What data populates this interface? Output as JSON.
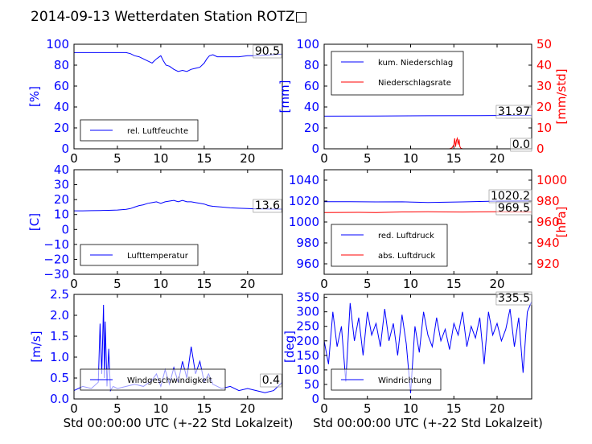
{
  "title": "2014-09-13 Wetterdaten Station ROTZ□",
  "colors": {
    "blue": "#0000ff",
    "red": "#ff0000",
    "axis": "#000000"
  },
  "chart_data": [
    {
      "id": "humidity",
      "type": "line",
      "ylabel": "[%]",
      "ylim": [
        0,
        100
      ],
      "yticks": [
        0,
        20,
        40,
        60,
        80,
        100
      ],
      "xlim": [
        0,
        24
      ],
      "xticks": [
        0,
        5,
        10,
        15,
        20
      ],
      "xlabel": "",
      "legend_position": "lower-left",
      "series": [
        {
          "name": "rel. Luftfeuchte",
          "color": "#0000ff",
          "x": [
            0,
            1,
            2,
            3,
            4,
            5,
            6,
            6.5,
            7,
            7.5,
            8,
            8.5,
            9,
            9.5,
            10,
            10.3,
            10.6,
            11,
            11.5,
            12,
            12.5,
            13,
            13.5,
            14,
            14.5,
            15,
            15.3,
            15.6,
            16,
            16.5,
            17,
            18,
            19,
            20,
            21,
            22,
            23,
            24
          ],
          "y": [
            92,
            92,
            92,
            92,
            92,
            92,
            92,
            91,
            89,
            88,
            86,
            84,
            82,
            86,
            89,
            84,
            80,
            79,
            76,
            74,
            75,
            74,
            76,
            77,
            78,
            82,
            86,
            89,
            90,
            88,
            88,
            88,
            88,
            89,
            89,
            89.5,
            90,
            90.5
          ]
        }
      ],
      "annotations": [
        {
          "text": "90.5"
        }
      ]
    },
    {
      "id": "rain",
      "type": "line",
      "ylabel": "[mm]",
      "ylim": [
        0,
        100
      ],
      "yticks": [
        0,
        20,
        40,
        60,
        80,
        100
      ],
      "y2label": "[mm/std]",
      "y2lim": [
        0,
        50
      ],
      "y2ticks": [
        0,
        10,
        20,
        30,
        40,
        50
      ],
      "xlim": [
        0,
        24
      ],
      "xticks": [
        0,
        5,
        10,
        15,
        20
      ],
      "xlabel": "",
      "legend_position": "upper-left",
      "series": [
        {
          "name": "kum. Niederschlag",
          "color": "#0000ff",
          "axis": "left",
          "x": [
            0,
            6,
            12,
            18,
            24
          ],
          "y": [
            31.2,
            31.4,
            31.6,
            31.8,
            31.97
          ]
        },
        {
          "name": "Niederschlagsrate",
          "color": "#ff0000",
          "axis": "right",
          "x": [
            0,
            14.5,
            14.8,
            15,
            15.1,
            15.2,
            15.3,
            15.4,
            15.5,
            15.6,
            15.7,
            15.8,
            16,
            24
          ],
          "y": [
            0,
            0,
            0.5,
            2,
            5,
            1,
            4,
            5,
            2,
            4.5,
            1,
            0.3,
            0,
            0
          ]
        }
      ],
      "annotations": [
        {
          "text": "31.97"
        },
        {
          "text": "0.0"
        }
      ]
    },
    {
      "id": "temperature",
      "type": "line",
      "ylabel": "[C]",
      "ylim": [
        -30,
        40
      ],
      "yticks": [
        -30,
        -20,
        -10,
        0,
        10,
        20,
        30,
        40
      ],
      "xlim": [
        0,
        24
      ],
      "xticks": [
        0,
        5,
        10,
        15,
        20
      ],
      "xlabel": "",
      "legend_position": "lower-left",
      "series": [
        {
          "name": "Lufttemperatur",
          "color": "#0000ff",
          "x": [
            0,
            1,
            2,
            3,
            4,
            5,
            6,
            6.5,
            7,
            7.5,
            8,
            8.5,
            9,
            9.5,
            10,
            10.5,
            11,
            11.5,
            12,
            12.5,
            13,
            13.5,
            14,
            14.5,
            15,
            15.5,
            16,
            17,
            18,
            19,
            20,
            21,
            22,
            23,
            24
          ],
          "y": [
            12.5,
            12.5,
            12.6,
            12.7,
            12.8,
            13,
            13.5,
            14,
            15,
            16,
            16.5,
            17.5,
            18,
            18.5,
            17.5,
            18.5,
            19,
            19.5,
            18.5,
            19.5,
            18.5,
            18.5,
            18,
            17.5,
            17,
            16,
            15.5,
            15,
            14.5,
            14.2,
            14,
            13.8,
            13.7,
            13.6,
            13.6
          ]
        }
      ],
      "annotations": [
        {
          "text": "13.6"
        }
      ]
    },
    {
      "id": "pressure",
      "type": "line",
      "ylim": [
        950,
        1050
      ],
      "yticks": [
        960,
        980,
        1000,
        1020,
        1040
      ],
      "y2label": "[hPa]",
      "y2lim": [
        910,
        1010
      ],
      "y2ticks": [
        920,
        940,
        960,
        980,
        1000
      ],
      "xlim": [
        0,
        24
      ],
      "xticks": [
        0,
        5,
        10,
        15,
        20
      ],
      "xlabel": "",
      "legend_position": "lower-left",
      "series": [
        {
          "name": "red. Luftdruck",
          "color": "#0000ff",
          "axis": "left",
          "x": [
            0,
            3,
            6,
            9,
            12,
            14,
            16,
            18,
            20,
            22,
            24
          ],
          "y": [
            1019.5,
            1019.5,
            1019.2,
            1019.3,
            1018.6,
            1018.9,
            1019.2,
            1019.6,
            1020,
            1020.1,
            1020.2
          ]
        },
        {
          "name": "abs. Luftdruck",
          "color": "#ff0000",
          "axis": "right",
          "x": [
            0,
            4,
            6,
            9,
            12,
            14,
            16,
            18,
            20,
            22,
            24
          ],
          "y": [
            969,
            969.2,
            969.1,
            969.6,
            969.8,
            969.6,
            969.5,
            969.7,
            969.8,
            969.6,
            969.5
          ]
        }
      ],
      "annotations": [
        {
          "text": "1020.2"
        },
        {
          "text": "969.5"
        }
      ]
    },
    {
      "id": "wind_speed",
      "type": "line",
      "ylabel": "[m/s]",
      "ylim": [
        0,
        2.5
      ],
      "yticks": [
        0.0,
        0.5,
        1.0,
        1.5,
        2.0,
        2.5
      ],
      "xlim": [
        0,
        24
      ],
      "xticks": [
        0,
        5,
        10,
        15,
        20
      ],
      "xlabel": "Std 00:00:00 UTC (+-22 Std Lokalzeit)",
      "legend_position": "lower-left",
      "series": [
        {
          "name": "Windgeschwindigkeit",
          "color": "#0000ff",
          "x": [
            0,
            1,
            2,
            2.8,
            3,
            3.2,
            3.4,
            3.5,
            3.6,
            3.8,
            4,
            4.2,
            4.5,
            5,
            6,
            7,
            8,
            9,
            9.5,
            10,
            10.5,
            11,
            11.5,
            12,
            12.5,
            13,
            13.5,
            14,
            14.5,
            15,
            15.5,
            16,
            17,
            18,
            19,
            20,
            21,
            22,
            23,
            24
          ],
          "y": [
            0.2,
            0.3,
            0.25,
            0.4,
            1.8,
            0.6,
            2.25,
            0.5,
            1.85,
            0.3,
            1.2,
            0.2,
            0.3,
            0.25,
            0.3,
            0.35,
            0.3,
            0.45,
            0.6,
            0.3,
            0.7,
            0.35,
            0.75,
            0.4,
            0.9,
            0.5,
            1.25,
            0.6,
            0.9,
            0.4,
            0.6,
            0.35,
            0.25,
            0.3,
            0.2,
            0.25,
            0.2,
            0.15,
            0.2,
            0.4
          ]
        }
      ],
      "annotations": [
        {
          "text": "0.4"
        }
      ]
    },
    {
      "id": "wind_direction",
      "type": "line",
      "ylabel": "[deg]",
      "ylim": [
        0,
        360
      ],
      "yticks": [
        0,
        50,
        100,
        150,
        200,
        250,
        300,
        350
      ],
      "xlim": [
        0,
        24
      ],
      "xticks": [
        0,
        5,
        10,
        15,
        20
      ],
      "xlabel": "Std 00:00:00 UTC (+-22 Std Lokalzeit)",
      "legend_position": "lower-left",
      "series": [
        {
          "name": "Windrichtung",
          "color": "#0000ff",
          "x": [
            0,
            0.5,
            1,
            1.5,
            2,
            2.5,
            3,
            3.5,
            4,
            4.5,
            5,
            5.5,
            6,
            6.5,
            7,
            7.5,
            8,
            8.5,
            9,
            9.5,
            10,
            10.5,
            11,
            11.5,
            12,
            12.5,
            13,
            13.5,
            14,
            14.5,
            15,
            15.5,
            16,
            16.5,
            17,
            17.5,
            18,
            18.5,
            19,
            19.5,
            20,
            20.5,
            21,
            21.5,
            22,
            22.5,
            23,
            23.5,
            24
          ],
          "y": [
            200,
            120,
            300,
            180,
            250,
            60,
            330,
            200,
            280,
            150,
            300,
            220,
            260,
            180,
            310,
            200,
            260,
            150,
            290,
            190,
            20,
            250,
            160,
            300,
            220,
            180,
            280,
            200,
            240,
            170,
            260,
            220,
            300,
            180,
            250,
            210,
            280,
            120,
            300,
            220,
            260,
            200,
            240,
            310,
            180,
            280,
            90,
            300,
            335.5
          ]
        }
      ],
      "annotations": [
        {
          "text": "335.5"
        }
      ]
    }
  ]
}
